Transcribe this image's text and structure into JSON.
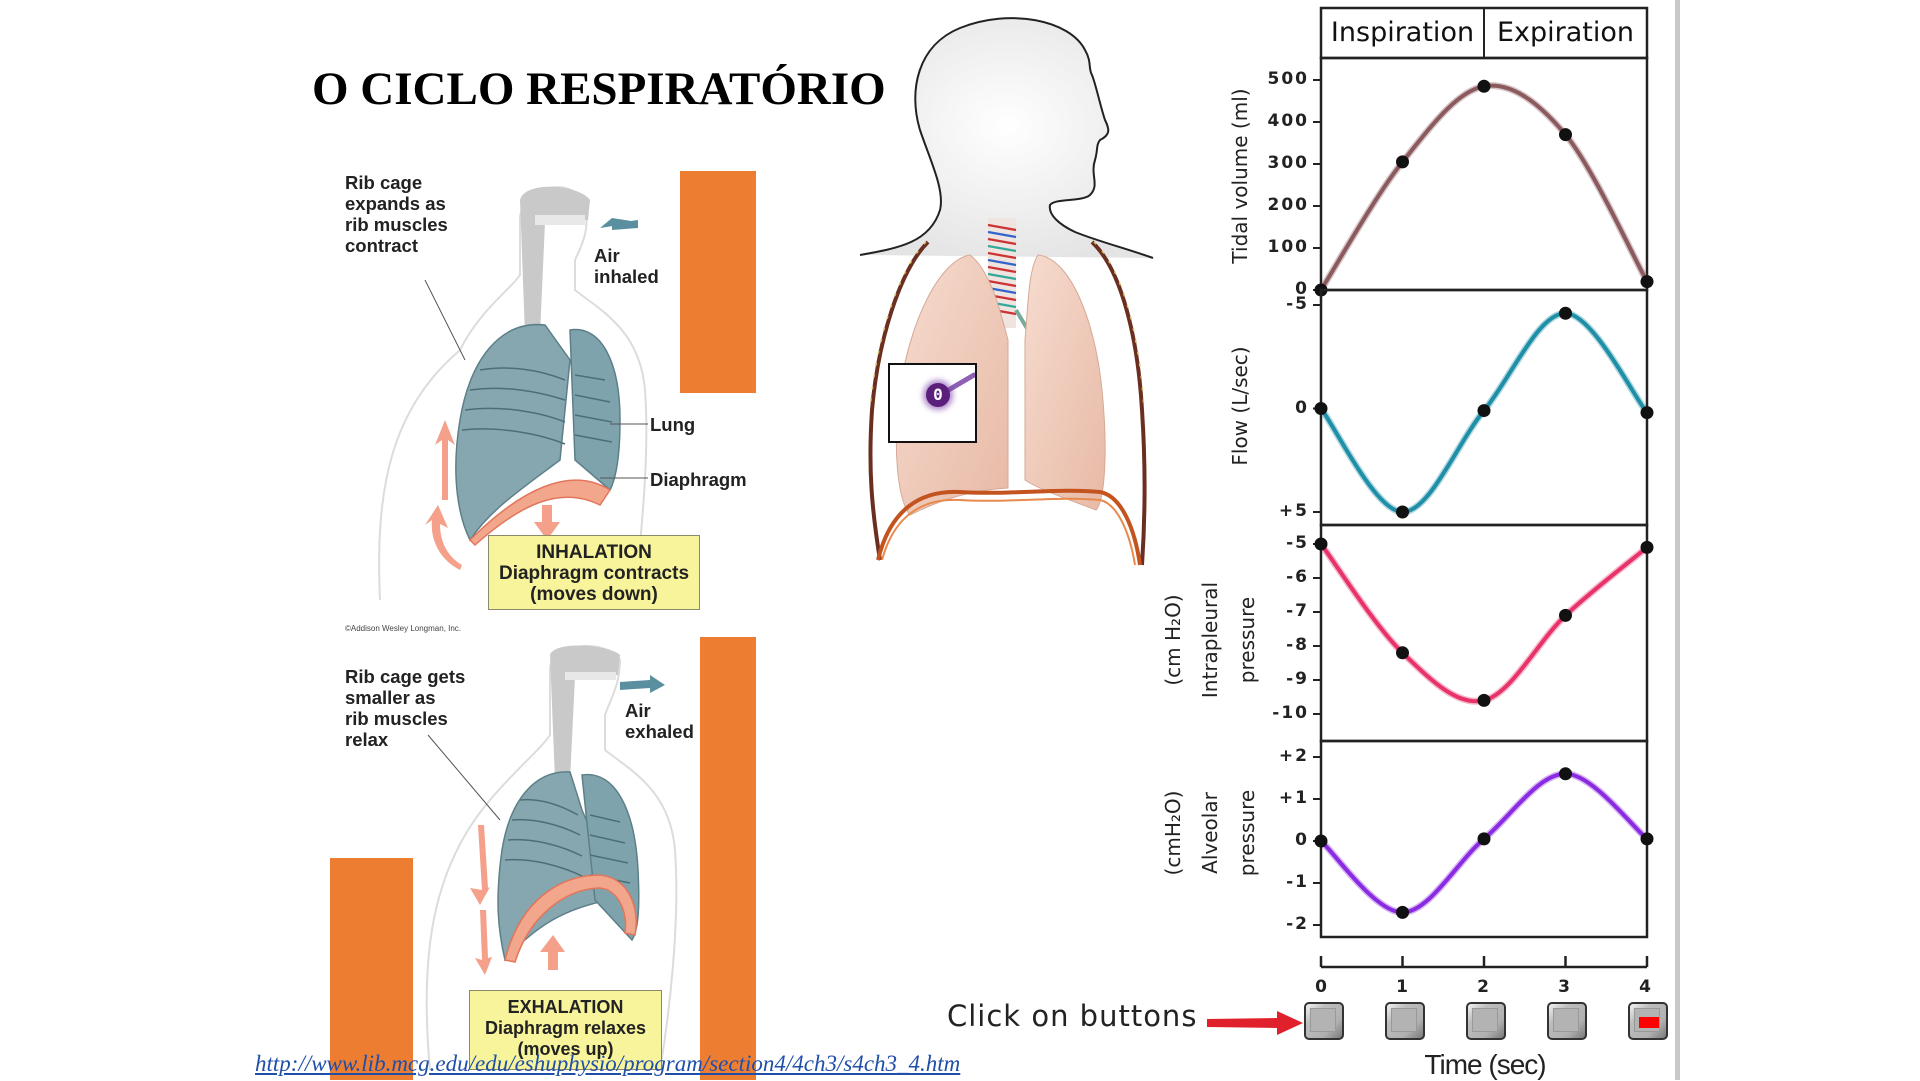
{
  "slide": {
    "title": "O CICLO RESPIRATÓRIO",
    "source_link": "http://www.lib.mcg.edu/edu/eshuphysio/program/section4/4ch3/s4ch3_4.htm"
  },
  "inhalation_figure": {
    "rib_label": [
      "Rib cage",
      "expands as",
      "rib muscles",
      "contract"
    ],
    "air_label": [
      "Air",
      "inhaled"
    ],
    "lung_label": "Lung",
    "diaphragm_label": "Diaphragm",
    "box_title": "INHALATION",
    "box_line1": "Diaphragm contracts",
    "box_line2": "(moves down)",
    "copyright": "©Addison Wesley Longman, Inc."
  },
  "exhalation_figure": {
    "rib_label": [
      "Rib cage gets",
      "smaller as",
      "rib muscles",
      "relax"
    ],
    "air_label": [
      "Air",
      "exhaled"
    ],
    "box_title": "EXHALATION",
    "box_line1": "Diaphragm relaxes",
    "box_line2": "(moves up)"
  },
  "torso_figure": {
    "pressure_indicator_value": "0"
  },
  "controls": {
    "instruction": "Click on buttons",
    "time_buttons": [
      "0",
      "1",
      "2",
      "3",
      "4"
    ],
    "active_button": "4",
    "x_axis_label": "Time (sec)"
  },
  "colors": {
    "accent_orange": "#ed7d31",
    "tidal": "#8b5a5e",
    "flow": "#1f8fa8",
    "intrapleural": "#e8336a",
    "alveolar": "#8a2be2",
    "active_marker": "#ff0000",
    "link": "#1f4fa8"
  },
  "chart_data": {
    "type": "line",
    "title": "",
    "header_phases": [
      "Inspiration",
      "Expiration"
    ],
    "x": [
      0,
      1,
      2,
      3,
      4
    ],
    "xlabel": "Time (sec)",
    "x_ticks": [
      "0",
      "1",
      "2",
      "3",
      "4"
    ],
    "grid": false,
    "panels": [
      {
        "name": "tidal_volume",
        "ylabel": "Tidal volume (ml)",
        "ylabel_lines": [
          "Tidal volume (ml)"
        ],
        "ylim": [
          0,
          500
        ],
        "y_ticks": [
          "0",
          "100",
          "200",
          "300",
          "400",
          "500"
        ],
        "inverted": false,
        "values": [
          0,
          305,
          485,
          370,
          20
        ],
        "color": "#8b5a5e"
      },
      {
        "name": "flow",
        "ylabel": "Flow (L/sec)",
        "ylabel_lines": [
          "Flow (L/sec)"
        ],
        "ylim": [
          -5,
          5
        ],
        "y_ticks": [
          "-5",
          "0",
          "+5"
        ],
        "inverted": true,
        "values": [
          0,
          5,
          0.1,
          -4.6,
          0.2
        ],
        "color": "#1f8fa8"
      },
      {
        "name": "intrapleural_pressure",
        "ylabel": "Intrapleural pressure (cm H2O)",
        "ylabel_lines": [
          "(cm H₂O)",
          "Intrapleural",
          "pressure"
        ],
        "ylim": [
          -10,
          -5
        ],
        "y_ticks": [
          "-5",
          "-6",
          "-7",
          "-8",
          "-9",
          "-10"
        ],
        "inverted": false,
        "values": [
          -5,
          -8.2,
          -9.6,
          -7.1,
          -5.1
        ],
        "color": "#e8336a"
      },
      {
        "name": "alveolar_pressure",
        "ylabel": "Alveolar pressure (cmH2O)",
        "ylabel_lines": [
          "(cmH₂O)",
          "Alveolar",
          "pressure"
        ],
        "ylim": [
          -2,
          2
        ],
        "y_ticks": [
          "+2",
          "+1",
          "0",
          "-1",
          "-2"
        ],
        "inverted": false,
        "values": [
          0,
          -1.7,
          0.05,
          1.6,
          0.05
        ],
        "color": "#8a2be2"
      }
    ]
  }
}
